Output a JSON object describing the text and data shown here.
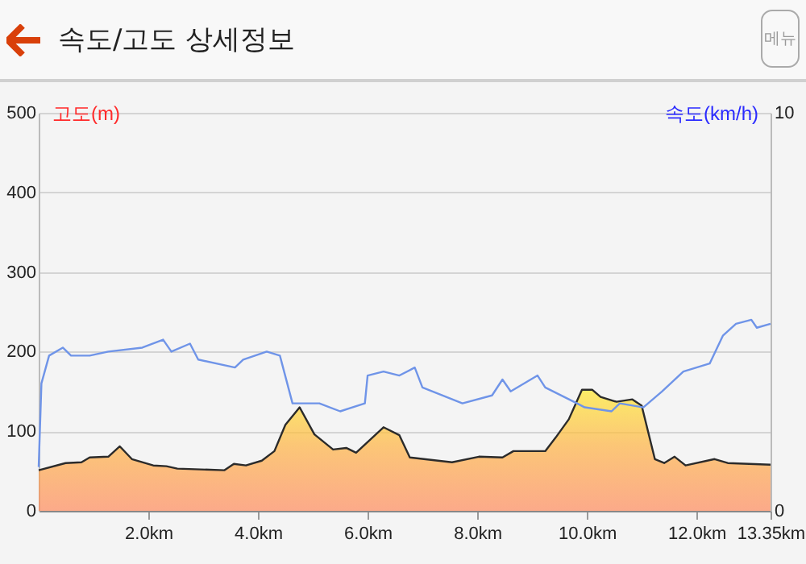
{
  "chart_data": {
    "type": "area",
    "title": "속도/고도 상세정보",
    "annotations": [
      "메뉴"
    ],
    "ylabel": "고도(m)",
    "y2label": "속도(km/h)",
    "xlim": [
      0,
      13.35
    ],
    "xticks": [
      {
        "value": 2,
        "label": "2.0km"
      },
      {
        "value": 4,
        "label": "4.0km"
      },
      {
        "value": 6,
        "label": "6.0km"
      },
      {
        "value": 8,
        "label": "8.0km"
      },
      {
        "value": 10,
        "label": "10.0km"
      },
      {
        "value": 12,
        "label": "12.0km"
      },
      {
        "value": 13.35,
        "label": "13.35km"
      }
    ],
    "ylim": [
      0,
      500
    ],
    "yticks": [
      0,
      100,
      200,
      300,
      400,
      500
    ],
    "y2lim": [
      0,
      10
    ],
    "y2ticks": [
      0,
      10
    ],
    "grid": "y",
    "series": [
      {
        "type": "area",
        "color": "#ffb340",
        "x": [
          0,
          0.49,
          0.78,
          0.93,
          1.27,
          1.48,
          1.7,
          2.09,
          2.33,
          2.53,
          3.39,
          3.56,
          3.78,
          4.07,
          4.3,
          4.5,
          4.76,
          5.03,
          5.37,
          5.61,
          5.79,
          6.29,
          6.58,
          6.77,
          7.54,
          8.03,
          8.46,
          8.66,
          9.24,
          9.43,
          9.67,
          9.91,
          10.1,
          10.25,
          10.54,
          10.83,
          11.0,
          11.24,
          11.41,
          11.6,
          11.8,
          12.33,
          12.57,
          13.35
        ],
        "values": [
          51,
          60,
          61,
          67,
          68,
          81,
          65,
          57,
          56,
          53,
          51,
          59,
          57,
          63,
          75,
          108,
          130,
          96,
          77,
          79,
          73,
          105,
          95,
          67,
          61,
          68,
          67,
          75,
          75,
          92,
          115,
          152,
          152,
          143,
          137,
          140,
          132,
          65,
          60,
          68,
          57,
          65,
          60,
          58
        ]
      },
      {
        "type": "line",
        "axis": "y2",
        "color": "#6f94e8",
        "x": [
          0,
          0.05,
          0.19,
          0.44,
          0.59,
          0.93,
          1.27,
          1.89,
          2.27,
          2.42,
          2.76,
          2.91,
          3.58,
          3.73,
          4.16,
          4.4,
          4.63,
          5.12,
          5.5,
          5.95,
          6.0,
          6.29,
          6.58,
          6.86,
          7.0,
          7.73,
          8.27,
          8.46,
          8.61,
          9.1,
          9.24,
          9.82,
          9.96,
          10.45,
          10.6,
          11.03,
          11.37,
          11.76,
          12.24,
          12.48,
          12.72,
          13.0,
          13.1,
          13.35
        ],
        "values": [
          1.1,
          3.2,
          3.9,
          4.1,
          3.9,
          3.9,
          4.0,
          4.1,
          4.3,
          4.0,
          4.2,
          3.8,
          3.6,
          3.8,
          4.0,
          3.9,
          2.7,
          2.7,
          2.5,
          2.7,
          3.4,
          3.5,
          3.4,
          3.6,
          3.1,
          2.7,
          2.9,
          3.3,
          3.0,
          3.4,
          3.1,
          2.7,
          2.6,
          2.5,
          2.7,
          2.6,
          3.0,
          3.5,
          3.7,
          4.4,
          4.7,
          4.8,
          4.6,
          4.7
        ]
      }
    ]
  }
}
